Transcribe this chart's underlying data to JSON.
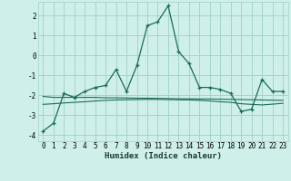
{
  "xlabel": "Humidex (Indice chaleur)",
  "bg_color": "#cff0ea",
  "grid_color": "#a0cfc8",
  "line_color": "#1a6b5a",
  "xlim": [
    -0.5,
    23.5
  ],
  "ylim": [
    -4.3,
    2.7
  ],
  "xticks": [
    0,
    1,
    2,
    3,
    4,
    5,
    6,
    7,
    8,
    9,
    10,
    11,
    12,
    13,
    14,
    15,
    16,
    17,
    18,
    19,
    20,
    21,
    22,
    23
  ],
  "yticks": [
    -4,
    -3,
    -2,
    -1,
    0,
    1,
    2
  ],
  "humidex_x": [
    0,
    1,
    2,
    3,
    4,
    5,
    6,
    7,
    8,
    9,
    10,
    11,
    12,
    13,
    14,
    15,
    16,
    17,
    18,
    19,
    20,
    21,
    22,
    23
  ],
  "humidex_y": [
    -3.8,
    -3.4,
    -1.9,
    -2.1,
    -1.8,
    -1.6,
    -1.5,
    -0.7,
    -1.8,
    -0.5,
    1.5,
    1.7,
    2.5,
    0.2,
    -0.4,
    -1.6,
    -1.6,
    -1.7,
    -1.9,
    -2.8,
    -2.7,
    -1.2,
    -1.8,
    -1.8
  ],
  "trend_x": [
    0,
    1,
    2,
    3,
    4,
    5,
    6,
    7,
    8,
    9,
    10,
    11,
    12,
    13,
    14,
    15,
    16,
    17,
    18,
    19,
    20,
    21,
    22,
    23
  ],
  "trend_y": [
    -2.05,
    -2.1,
    -2.1,
    -2.1,
    -2.1,
    -2.1,
    -2.12,
    -2.12,
    -2.13,
    -2.14,
    -2.14,
    -2.15,
    -2.16,
    -2.17,
    -2.17,
    -2.18,
    -2.18,
    -2.19,
    -2.2,
    -2.21,
    -2.22,
    -2.23,
    -2.24,
    -2.25
  ],
  "trend2_y": [
    -2.45,
    -2.42,
    -2.38,
    -2.35,
    -2.32,
    -2.28,
    -2.25,
    -2.23,
    -2.22,
    -2.21,
    -2.2,
    -2.2,
    -2.21,
    -2.22,
    -2.23,
    -2.25,
    -2.28,
    -2.32,
    -2.35,
    -2.42,
    -2.45,
    -2.48,
    -2.44,
    -2.4
  ]
}
